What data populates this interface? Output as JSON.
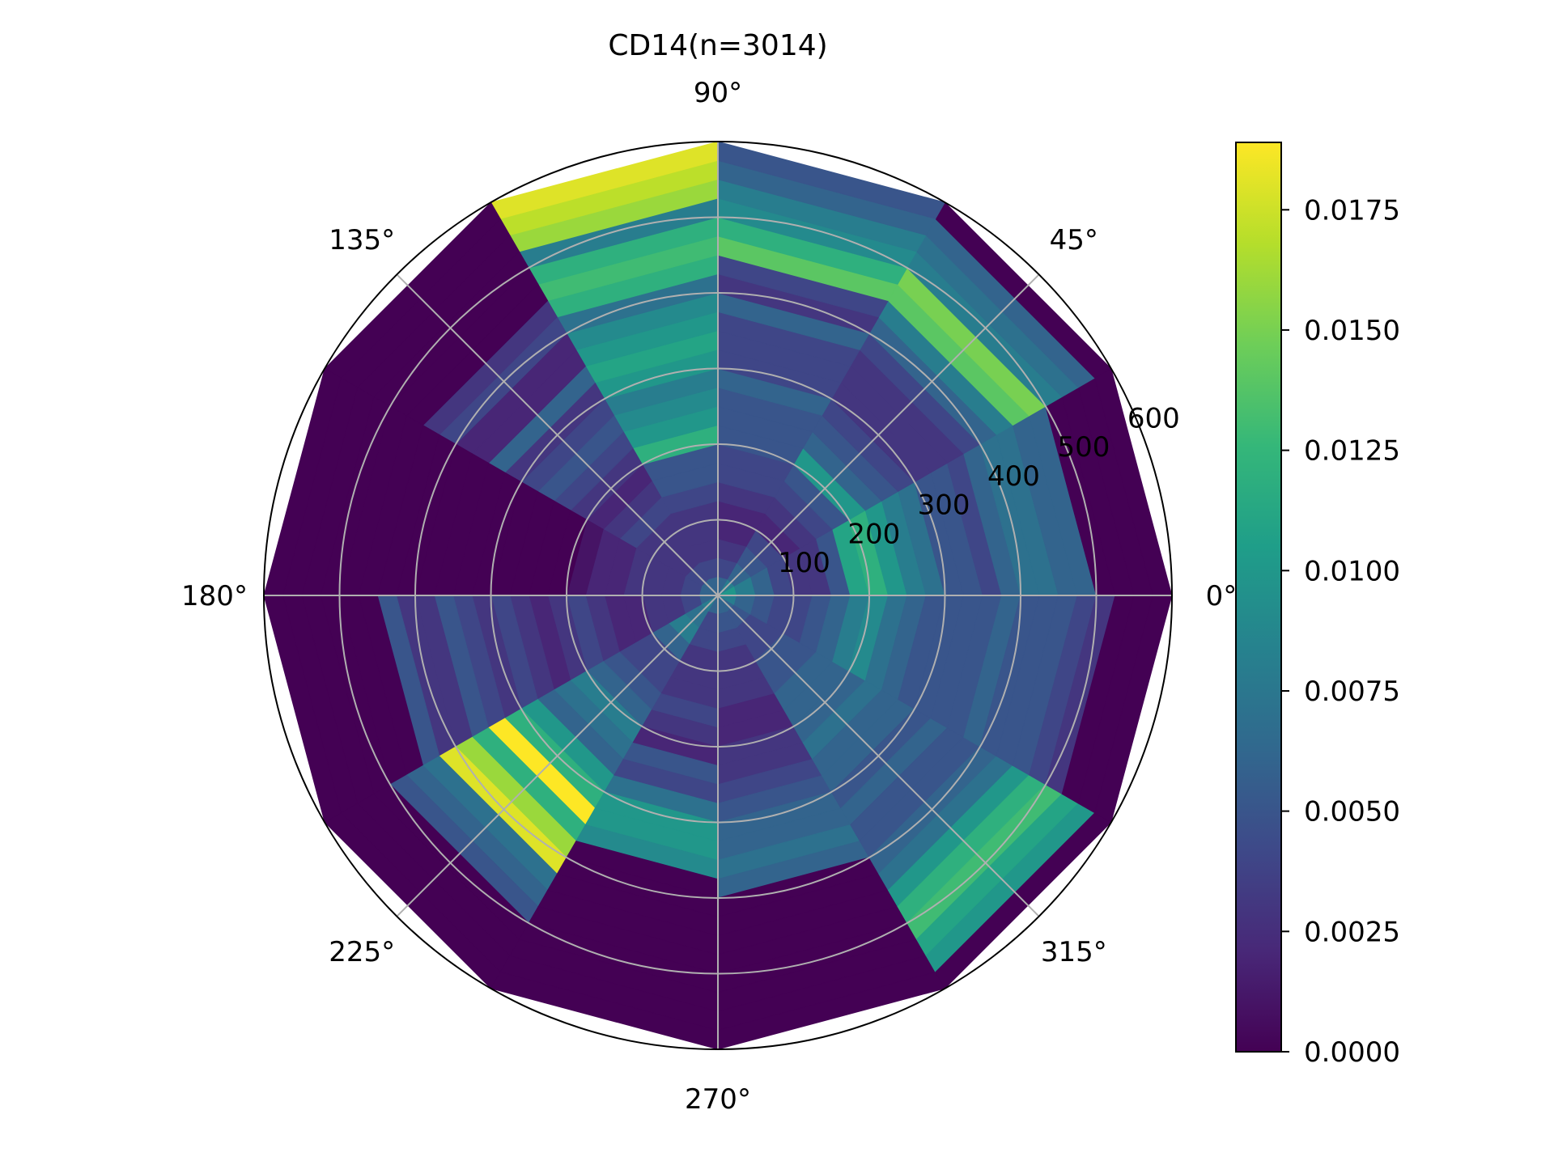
{
  "chart_data": {
    "type": "heatmap",
    "projection": "polar",
    "title": "CD14(n=3014)",
    "theta_tick_labels": [
      "0°",
      "45°",
      "90°",
      "135°",
      "180°",
      "225°",
      "270°",
      "315°"
    ],
    "r_tick_labels": [
      "100",
      "200",
      "300",
      "400",
      "500",
      "600"
    ],
    "r_ticks": [
      100,
      200,
      300,
      400,
      500,
      600
    ],
    "rlim": [
      0,
      600
    ],
    "theta_bins_deg": [
      0,
      30,
      60,
      90,
      120,
      150,
      180,
      210,
      240,
      270,
      300,
      330,
      360
    ],
    "r_bins": [
      0,
      25,
      50,
      75,
      100,
      125,
      150,
      175,
      200,
      225,
      250,
      275,
      300,
      325,
      350,
      375,
      400,
      425,
      450,
      475,
      500,
      525,
      550,
      575,
      600
    ],
    "values": [
      [
        0.01,
        0.008,
        0.006,
        0.004,
        0.003,
        0.003,
        0.005,
        0.011,
        0.012,
        0.01,
        0.008,
        0.007,
        0.005,
        0.005,
        0.004,
        0.006,
        0.007,
        0.007,
        0.006,
        0.006,
        0.0,
        0.0,
        0.0,
        0.0
      ],
      [
        0.008,
        0.006,
        0.005,
        0.004,
        0.002,
        0.003,
        0.004,
        0.005,
        0.01,
        0.006,
        0.005,
        0.004,
        0.003,
        0.003,
        0.003,
        0.004,
        0.006,
        0.008,
        0.014,
        0.015,
        0.008,
        0.007,
        0.006,
        0.0
      ],
      [
        0.006,
        0.004,
        0.003,
        0.002,
        0.002,
        0.003,
        0.004,
        0.004,
        0.005,
        0.005,
        0.005,
        0.006,
        0.004,
        0.004,
        0.004,
        0.006,
        0.003,
        0.004,
        0.014,
        0.012,
        0.009,
        0.008,
        0.006,
        0.005
      ],
      [
        0.006,
        0.004,
        0.003,
        0.003,
        0.003,
        0.004,
        0.005,
        0.005,
        0.012,
        0.01,
        0.009,
        0.008,
        0.01,
        0.011,
        0.01,
        0.009,
        0.007,
        0.012,
        0.013,
        0.012,
        0.008,
        0.016,
        0.017,
        0.018
      ],
      [
        0.006,
        0.004,
        0.003,
        0.003,
        0.003,
        0.004,
        0.003,
        0.002,
        0.003,
        0.004,
        0.005,
        0.004,
        0.003,
        0.006,
        0.002,
        0.002,
        0.004,
        0.003,
        0.0,
        0.0,
        0.0,
        0.0,
        0.0,
        0.0
      ],
      [
        0.006,
        0.004,
        0.003,
        0.003,
        0.003,
        0.002,
        0.002,
        0.001,
        0.0,
        0.0,
        0.0,
        0.0,
        0.0,
        0.0,
        0.0,
        0.0,
        0.0,
        0.0,
        0.0,
        0.0,
        0.0,
        0.0,
        0.0,
        0.0
      ],
      [
        0.006,
        0.004,
        0.003,
        0.003,
        0.002,
        0.002,
        0.003,
        0.004,
        0.003,
        0.002,
        0.003,
        0.004,
        0.003,
        0.004,
        0.005,
        0.003,
        0.003,
        0.005,
        0.0,
        0.0,
        0.0,
        0.0,
        0.0,
        0.0
      ],
      [
        0.008,
        0.007,
        0.008,
        0.006,
        0.004,
        0.004,
        0.005,
        0.006,
        0.008,
        0.007,
        0.006,
        0.01,
        0.012,
        0.019,
        0.012,
        0.016,
        0.018,
        0.007,
        0.006,
        0.005,
        0.0,
        0.0,
        0.0,
        0.0
      ],
      [
        0.006,
        0.004,
        0.004,
        0.003,
        0.003,
        0.003,
        0.004,
        0.003,
        0.002,
        0.005,
        0.004,
        0.007,
        0.01,
        0.01,
        0.009,
        0.0,
        0.0,
        0.0,
        0.0,
        0.0,
        0.0,
        0.0,
        0.0,
        0.0
      ],
      [
        0.006,
        0.005,
        0.004,
        0.003,
        0.003,
        0.003,
        0.002,
        0.002,
        0.003,
        0.003,
        0.004,
        0.005,
        0.006,
        0.006,
        0.007,
        0.006,
        0.0,
        0.0,
        0.0,
        0.0,
        0.0,
        0.0,
        0.0,
        0.0
      ],
      [
        0.006,
        0.005,
        0.004,
        0.004,
        0.005,
        0.005,
        0.006,
        0.006,
        0.006,
        0.007,
        0.006,
        0.006,
        0.005,
        0.006,
        0.005,
        0.005,
        0.006,
        0.007,
        0.01,
        0.012,
        0.013,
        0.011,
        0.01,
        0.0
      ],
      [
        0.008,
        0.006,
        0.005,
        0.004,
        0.004,
        0.005,
        0.006,
        0.008,
        0.009,
        0.007,
        0.006,
        0.005,
        0.005,
        0.005,
        0.005,
        0.006,
        0.005,
        0.005,
        0.005,
        0.004,
        0.003,
        0.0,
        0.0,
        0.0
      ]
    ],
    "colormap": "viridis",
    "colorbar": {
      "vmin": 0,
      "vmax": 0.0189,
      "tick_values": [
        0,
        0.0025,
        0.005,
        0.0075,
        0.01,
        0.0125,
        0.015,
        0.0175
      ],
      "tick_labels": [
        "0.0000",
        "0.0025",
        "0.0050",
        "0.0075",
        "0.0100",
        "0.0125",
        "0.0150",
        "0.0175"
      ]
    },
    "grid": true
  }
}
